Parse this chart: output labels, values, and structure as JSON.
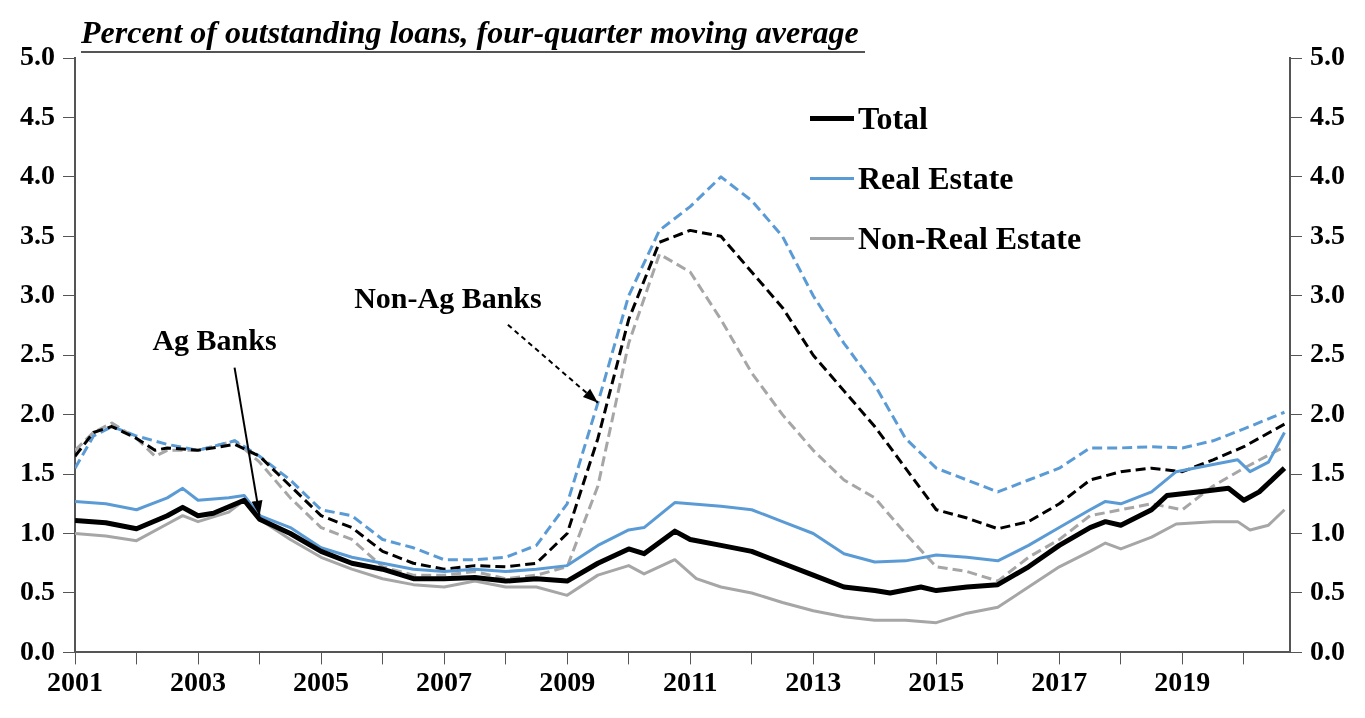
{
  "chart_data": {
    "type": "line",
    "title": "Percent of outstanding loans, four-quarter moving average",
    "xlim": [
      2001,
      2020.75
    ],
    "xticks": [
      {
        "value": 2001,
        "label": "2001"
      },
      {
        "value": 2002,
        "label": null
      },
      {
        "value": 2003,
        "label": "2003"
      },
      {
        "value": 2004,
        "label": null
      },
      {
        "value": 2005,
        "label": "2005"
      },
      {
        "value": 2006,
        "label": null
      },
      {
        "value": 2007,
        "label": "2007"
      },
      {
        "value": 2008,
        "label": null
      },
      {
        "value": 2009,
        "label": "2009"
      },
      {
        "value": 2010,
        "label": null
      },
      {
        "value": 2011,
        "label": "2011"
      },
      {
        "value": 2012,
        "label": null
      },
      {
        "value": 2013,
        "label": "2013"
      },
      {
        "value": 2014,
        "label": null
      },
      {
        "value": 2015,
        "label": "2015"
      },
      {
        "value": 2016,
        "label": null
      },
      {
        "value": 2017,
        "label": "2017"
      },
      {
        "value": 2018,
        "label": null
      },
      {
        "value": 2019,
        "label": "2019"
      },
      {
        "value": 2020,
        "label": null
      }
    ],
    "ylim": [
      0,
      5
    ],
    "yticks": [
      {
        "value": 0,
        "label": "0.0"
      },
      {
        "value": 0.5,
        "label": "0.5"
      },
      {
        "value": 1,
        "label": "1.0"
      },
      {
        "value": 1.5,
        "label": "1.5"
      },
      {
        "value": 2,
        "label": "2.0"
      },
      {
        "value": 2.5,
        "label": "2.5"
      },
      {
        "value": 3,
        "label": "3.0"
      },
      {
        "value": 3.5,
        "label": "3.5"
      },
      {
        "value": 4,
        "label": "4.0"
      },
      {
        "value": 4.5,
        "label": "4.5"
      },
      {
        "value": 5,
        "label": "5.0"
      }
    ],
    "y2lim": [
      0,
      5
    ],
    "y2ticks": [
      {
        "value": 0,
        "label": "0.0"
      },
      {
        "value": 0.5,
        "label": "0.5"
      },
      {
        "value": 1,
        "label": "1.0"
      },
      {
        "value": 1.5,
        "label": "1.5"
      },
      {
        "value": 2,
        "label": "2.0"
      },
      {
        "value": 2.5,
        "label": "2.5"
      },
      {
        "value": 3,
        "label": "3.0"
      },
      {
        "value": 3.5,
        "label": "3.5"
      },
      {
        "value": 4,
        "label": "4.0"
      },
      {
        "value": 4.5,
        "label": "4.5"
      },
      {
        "value": 5,
        "label": "5.0"
      }
    ],
    "grid": false,
    "legend": "top right",
    "marker": "none",
    "annotations": [
      {
        "text": "Ag Banks",
        "x": 2004.0,
        "y": 1.15
      },
      {
        "text": "Non-Ag Banks",
        "x": 2009.5,
        "y": 2.1
      }
    ],
    "series": [
      {
        "name": "Total",
        "color": "#000000",
        "line_style": "solid",
        "x": [
          2001,
          2001.5,
          2002,
          2002.5,
          2002.75,
          2003,
          2003.25,
          2003.75,
          2004,
          2004.5,
          2005,
          2005.5,
          2006,
          2006.5,
          2007,
          2007.5,
          2008,
          2008.5,
          2009,
          2009.5,
          2010,
          2010.25,
          2010.75,
          2011,
          2011.5,
          2012,
          2012.5,
          2013,
          2013.5,
          2014,
          2014.25,
          2014.75,
          2015,
          2015.5,
          2016,
          2016.5,
          2017,
          2017.5,
          2017.75,
          2018,
          2018.5,
          2018.75,
          2019.25,
          2019.75,
          2020,
          2020.25,
          2020.66
        ],
        "values": [
          1.11,
          1.09,
          1.04,
          1.15,
          1.22,
          1.15,
          1.17,
          1.28,
          1.12,
          1.0,
          0.85,
          0.75,
          0.7,
          0.62,
          0.62,
          0.63,
          0.6,
          0.62,
          0.6,
          0.75,
          0.87,
          0.83,
          1.02,
          0.95,
          0.9,
          0.85,
          0.75,
          0.65,
          0.55,
          0.52,
          0.5,
          0.55,
          0.52,
          0.55,
          0.57,
          0.72,
          0.9,
          1.05,
          1.1,
          1.07,
          1.2,
          1.32,
          1.35,
          1.38,
          1.28,
          1.35,
          1.55
        ]
      },
      {
        "name": "Real Estate",
        "color": "#5b9bd5",
        "line_style": "solid",
        "x": [
          2001,
          2001.5,
          2002,
          2002.5,
          2002.75,
          2003,
          2003.5,
          2003.75,
          2004,
          2004.5,
          2005,
          2005.5,
          2006,
          2006.5,
          2007,
          2007.5,
          2008,
          2008.5,
          2009,
          2009.5,
          2010,
          2010.25,
          2010.75,
          2011.5,
          2012,
          2012.5,
          2013,
          2013.5,
          2014,
          2014.5,
          2015,
          2015.5,
          2016,
          2016.5,
          2017,
          2017.5,
          2017.75,
          2018,
          2018.5,
          2018.9,
          2019.5,
          2019.9,
          2020.1,
          2020.4,
          2020.66
        ],
        "values": [
          1.27,
          1.25,
          1.2,
          1.3,
          1.38,
          1.28,
          1.3,
          1.32,
          1.15,
          1.05,
          0.88,
          0.8,
          0.75,
          0.7,
          0.68,
          0.7,
          0.68,
          0.7,
          0.73,
          0.9,
          1.03,
          1.05,
          1.26,
          1.23,
          1.2,
          1.1,
          1.0,
          0.83,
          0.76,
          0.77,
          0.82,
          0.8,
          0.77,
          0.9,
          1.05,
          1.2,
          1.27,
          1.25,
          1.35,
          1.52,
          1.58,
          1.62,
          1.52,
          1.6,
          1.85
        ]
      },
      {
        "name": "Non-Real Estate",
        "color": "#a6a6a6",
        "line_style": "solid",
        "x": [
          2001,
          2001.5,
          2002,
          2002.5,
          2002.75,
          2003,
          2003.5,
          2003.75,
          2004,
          2004.5,
          2005,
          2005.5,
          2006,
          2006.5,
          2007,
          2007.5,
          2008,
          2008.5,
          2009,
          2009.5,
          2010,
          2010.25,
          2010.75,
          2011.1,
          2011.5,
          2012,
          2012.5,
          2013,
          2013.5,
          2014,
          2014.5,
          2015,
          2015.5,
          2016,
          2016.5,
          2017,
          2017.5,
          2017.75,
          2018,
          2018.5,
          2018.9,
          2019.5,
          2019.9,
          2020.1,
          2020.4,
          2020.66
        ],
        "values": [
          1.0,
          0.98,
          0.94,
          1.08,
          1.15,
          1.1,
          1.18,
          1.28,
          1.12,
          0.95,
          0.8,
          0.7,
          0.62,
          0.57,
          0.55,
          0.6,
          0.55,
          0.55,
          0.48,
          0.65,
          0.73,
          0.66,
          0.78,
          0.62,
          0.55,
          0.5,
          0.42,
          0.35,
          0.3,
          0.27,
          0.27,
          0.25,
          0.33,
          0.38,
          0.55,
          0.72,
          0.85,
          0.92,
          0.87,
          0.97,
          1.08,
          1.1,
          1.1,
          1.03,
          1.07,
          1.2
        ]
      },
      {
        "color": "#000000",
        "line_style": "dashed",
        "x": [
          2001,
          2001.3,
          2001.6,
          2002,
          2002.3,
          2002.5,
          2003,
          2003.6,
          2004,
          2004.5,
          2005,
          2005.5,
          2006,
          2006.5,
          2007,
          2007.5,
          2008,
          2008.5,
          2009,
          2009.5,
          2010,
          2010.5,
          2011,
          2011.5,
          2012,
          2012.5,
          2013,
          2013.5,
          2014,
          2014.5,
          2015,
          2015.5,
          2016,
          2016.5,
          2017,
          2017.5,
          2018,
          2018.5,
          2019,
          2019.5,
          2020,
          2020.66
        ],
        "values": [
          1.65,
          1.85,
          1.9,
          1.8,
          1.7,
          1.72,
          1.7,
          1.75,
          1.65,
          1.4,
          1.15,
          1.05,
          0.85,
          0.75,
          0.7,
          0.73,
          0.72,
          0.75,
          1.0,
          1.8,
          2.8,
          3.45,
          3.55,
          3.5,
          3.2,
          2.9,
          2.5,
          2.2,
          1.9,
          1.55,
          1.2,
          1.13,
          1.04,
          1.1,
          1.25,
          1.45,
          1.52,
          1.55,
          1.52,
          1.62,
          1.73,
          1.92
        ]
      },
      {
        "color": "#5b9bd5",
        "line_style": "dashed",
        "x": [
          2001,
          2001.3,
          2001.6,
          2002,
          2002.5,
          2003,
          2003.6,
          2004,
          2004.5,
          2005,
          2005.5,
          2006,
          2006.5,
          2007,
          2007.5,
          2008,
          2008.5,
          2009,
          2009.5,
          2010,
          2010.5,
          2011,
          2011.5,
          2012,
          2012.5,
          2013,
          2013.5,
          2014,
          2014.5,
          2015,
          2015.5,
          2016,
          2016.5,
          2017,
          2017.5,
          2018,
          2018.5,
          2019,
          2019.5,
          2020,
          2020.66
        ],
        "values": [
          1.55,
          1.82,
          1.9,
          1.82,
          1.75,
          1.7,
          1.78,
          1.65,
          1.45,
          1.2,
          1.15,
          0.95,
          0.88,
          0.78,
          0.78,
          0.8,
          0.9,
          1.25,
          2.1,
          3.0,
          3.55,
          3.75,
          4.0,
          3.8,
          3.5,
          3.0,
          2.6,
          2.25,
          1.8,
          1.55,
          1.45,
          1.35,
          1.45,
          1.55,
          1.72,
          1.72,
          1.73,
          1.72,
          1.78,
          1.88,
          2.02
        ]
      },
      {
        "color": "#a6a6a6",
        "line_style": "dashed",
        "x": [
          2001,
          2001.3,
          2001.6,
          2002,
          2002.3,
          2002.5,
          2003,
          2003.6,
          2004,
          2004.5,
          2005,
          2005.5,
          2006,
          2006.5,
          2007,
          2007.5,
          2008,
          2008.5,
          2009,
          2009.5,
          2010,
          2010.5,
          2011,
          2011.5,
          2012,
          2012.5,
          2013,
          2013.5,
          2014,
          2014.5,
          2015,
          2015.5,
          2016,
          2016.5,
          2017,
          2017.5,
          2018,
          2018.5,
          2019,
          2019.5,
          2020,
          2020.66
        ],
        "values": [
          1.7,
          1.85,
          1.93,
          1.8,
          1.65,
          1.7,
          1.7,
          1.78,
          1.6,
          1.3,
          1.05,
          0.95,
          0.72,
          0.65,
          0.65,
          0.68,
          0.62,
          0.65,
          0.72,
          1.4,
          2.6,
          3.35,
          3.2,
          2.8,
          2.35,
          2.0,
          1.7,
          1.45,
          1.3,
          1.0,
          0.72,
          0.68,
          0.6,
          0.8,
          0.95,
          1.15,
          1.2,
          1.25,
          1.2,
          1.4,
          1.55,
          1.73
        ]
      }
    ]
  }
}
